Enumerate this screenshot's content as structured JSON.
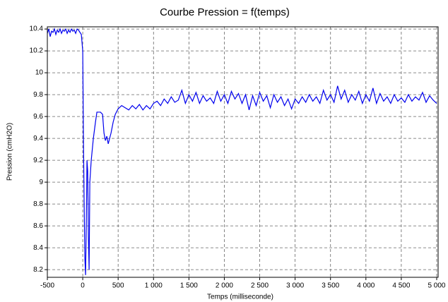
{
  "chart_data": {
    "type": "line",
    "title": "Courbe Pression = f(temps)",
    "x_label": "Temps (milliseconde)",
    "y_label": "Pression (cmH2O)",
    "xlim": [
      -500,
      5020
    ],
    "ylim": [
      8.13,
      10.42
    ],
    "xticks": [
      -500,
      0,
      500,
      {
        "value": 1000,
        "label": "1 000"
      },
      {
        "value": 1500,
        "label": "1 500"
      },
      {
        "value": 2000,
        "label": "2 000"
      },
      {
        "value": 2500,
        "label": "2 500"
      },
      {
        "value": 3000,
        "label": "3 000"
      },
      {
        "value": 3500,
        "label": "3 500"
      },
      {
        "value": 4000,
        "label": "4 000"
      },
      {
        "value": 4500,
        "label": "4 500"
      },
      {
        "value": 5000,
        "label": "5 000"
      }
    ],
    "yticks": [
      8.2,
      8.4,
      8.6,
      8.8,
      9,
      9.2,
      9.4,
      9.6,
      9.8,
      10,
      10.2,
      10.4
    ],
    "grid": true,
    "series": [
      {
        "color": "#0000ee",
        "x": [
          -500,
          -480,
          -460,
          -440,
          -420,
          -400,
          -380,
          -360,
          -340,
          -320,
          -300,
          -280,
          -260,
          -240,
          -220,
          -200,
          -180,
          -160,
          -140,
          -120,
          -100,
          -80,
          -60,
          -40,
          -20,
          0,
          10,
          20,
          30,
          40,
          50,
          60,
          70,
          80,
          90,
          100,
          120,
          150,
          180,
          200,
          250,
          280,
          300,
          320,
          340,
          360,
          380,
          400,
          430,
          460,
          500,
          550,
          600,
          650,
          700,
          750,
          800,
          850,
          900,
          950,
          1000,
          1050,
          1100,
          1150,
          1200,
          1250,
          1300,
          1350,
          1400,
          1450,
          1500,
          1550,
          1600,
          1650,
          1700,
          1750,
          1800,
          1850,
          1900,
          1950,
          2000,
          2050,
          2100,
          2150,
          2200,
          2250,
          2300,
          2350,
          2400,
          2450,
          2500,
          2550,
          2600,
          2650,
          2700,
          2750,
          2800,
          2850,
          2900,
          2950,
          3000,
          3050,
          3100,
          3150,
          3200,
          3250,
          3300,
          3350,
          3400,
          3450,
          3500,
          3550,
          3600,
          3650,
          3700,
          3750,
          3800,
          3850,
          3900,
          3950,
          4000,
          4050,
          4100,
          4150,
          4200,
          4250,
          4300,
          4350,
          4400,
          4450,
          4500,
          4550,
          4600,
          4650,
          4700,
          4750,
          4800,
          4850,
          4900,
          4950,
          5000
        ],
        "values": [
          10.36,
          10.4,
          10.33,
          10.38,
          10.37,
          10.4,
          10.35,
          10.39,
          10.37,
          10.4,
          10.36,
          10.39,
          10.38,
          10.4,
          10.36,
          10.39,
          10.37,
          10.4,
          10.38,
          10.39,
          10.36,
          10.4,
          10.39,
          10.37,
          10.35,
          10.2,
          9.4,
          8.8,
          8.3,
          8.15,
          8.6,
          9.2,
          9.1,
          8.5,
          8.2,
          9.0,
          9.2,
          9.4,
          9.55,
          9.64,
          9.64,
          9.62,
          9.45,
          9.38,
          9.42,
          9.35,
          9.4,
          9.45,
          9.55,
          9.62,
          9.67,
          9.7,
          9.68,
          9.66,
          9.7,
          9.67,
          9.71,
          9.66,
          9.7,
          9.67,
          9.72,
          9.74,
          9.7,
          9.76,
          9.72,
          9.78,
          9.73,
          9.75,
          9.84,
          9.72,
          9.8,
          9.74,
          9.82,
          9.72,
          9.79,
          9.74,
          9.77,
          9.72,
          9.83,
          9.74,
          9.8,
          9.72,
          9.83,
          9.76,
          9.81,
          9.72,
          9.8,
          9.66,
          9.79,
          9.7,
          9.82,
          9.74,
          9.79,
          9.68,
          9.8,
          9.73,
          9.78,
          9.7,
          9.76,
          9.67,
          9.76,
          9.72,
          9.78,
          9.73,
          9.8,
          9.74,
          9.78,
          9.72,
          9.84,
          9.75,
          9.8,
          9.73,
          9.88,
          9.76,
          9.84,
          9.73,
          9.8,
          9.75,
          9.83,
          9.72,
          9.8,
          9.74,
          9.86,
          9.72,
          9.81,
          9.74,
          9.78,
          9.72,
          9.8,
          9.74,
          9.77,
          9.73,
          9.8,
          9.74,
          9.78,
          9.75,
          9.82,
          9.73,
          9.79,
          9.75,
          9.72
        ]
      }
    ]
  }
}
